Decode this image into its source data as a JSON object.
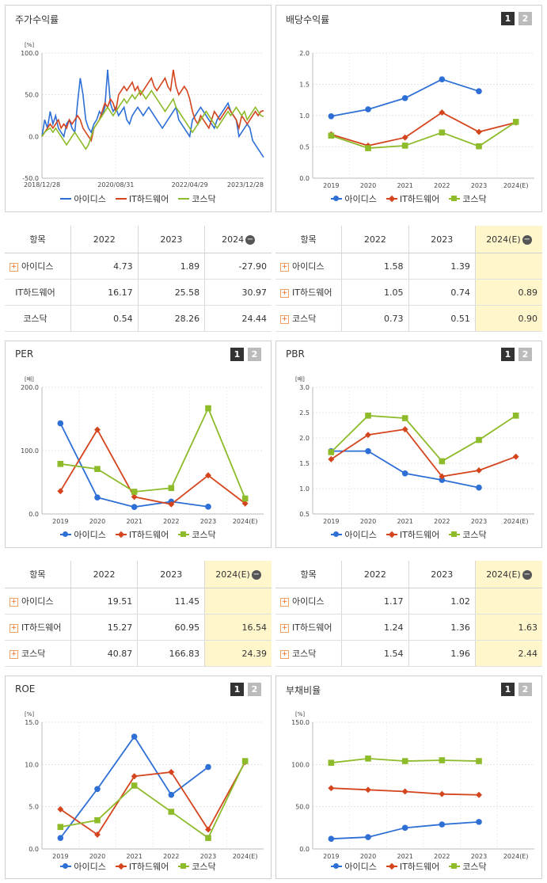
{
  "colors": {
    "adidas": "#2e6fd6",
    "it": "#d4451e",
    "kosdaq": "#8dbb2a",
    "highlight": "#fff6cc"
  },
  "series_names": [
    "아이디스",
    "IT하드웨어",
    "코스닥"
  ],
  "buttons": {
    "one": "1",
    "two": "2"
  },
  "panels": {
    "stock": {
      "title": "주가수익률"
    },
    "dividend": {
      "title": "배당수익률"
    },
    "per": {
      "title": "PER"
    },
    "pbr": {
      "title": "PBR"
    },
    "roe": {
      "title": "ROE"
    },
    "debt": {
      "title": "부채비율"
    }
  },
  "tables": {
    "stock": {
      "headers": [
        "항목",
        "2022",
        "2023",
        "2024"
      ],
      "rows": [
        {
          "name": "아이디스",
          "plus": true,
          "values": [
            "4.73",
            "1.89",
            "-27.90"
          ]
        },
        {
          "name": "IT하드웨어",
          "plus": false,
          "values": [
            "16.17",
            "25.58",
            "30.97"
          ]
        },
        {
          "name": "코스닥",
          "plus": false,
          "values": [
            "0.54",
            "28.26",
            "24.44"
          ]
        }
      ]
    },
    "dividend": {
      "headers": [
        "항목",
        "2022",
        "2023",
        "2024(E)"
      ],
      "rows": [
        {
          "name": "아이디스",
          "plus": true,
          "values": [
            "1.58",
            "1.39",
            ""
          ]
        },
        {
          "name": "IT하드웨어",
          "plus": true,
          "values": [
            "1.05",
            "0.74",
            "0.89"
          ]
        },
        {
          "name": "코스닥",
          "plus": true,
          "values": [
            "0.73",
            "0.51",
            "0.90"
          ]
        }
      ]
    },
    "per": {
      "headers": [
        "항목",
        "2022",
        "2023",
        "2024(E)"
      ],
      "rows": [
        {
          "name": "아이디스",
          "plus": true,
          "values": [
            "19.51",
            "11.45",
            ""
          ]
        },
        {
          "name": "IT하드웨어",
          "plus": true,
          "values": [
            "15.27",
            "60.95",
            "16.54"
          ]
        },
        {
          "name": "코스닥",
          "plus": true,
          "values": [
            "40.87",
            "166.83",
            "24.39"
          ]
        }
      ]
    },
    "pbr": {
      "headers": [
        "항목",
        "2022",
        "2023",
        "2024(E)"
      ],
      "rows": [
        {
          "name": "아이디스",
          "plus": true,
          "values": [
            "1.17",
            "1.02",
            ""
          ]
        },
        {
          "name": "IT하드웨어",
          "plus": true,
          "values": [
            "1.24",
            "1.36",
            "1.63"
          ]
        },
        {
          "name": "코스닥",
          "plus": true,
          "values": [
            "1.54",
            "1.96",
            "2.44"
          ]
        }
      ]
    }
  },
  "chart_data": [
    {
      "id": "stock",
      "type": "line",
      "unit": "[%]",
      "ylim": [
        -50,
        100
      ],
      "yticks": [
        "100.0",
        "50.0",
        "0.0",
        "-50.0"
      ],
      "xticks": [
        "2018/12/28",
        "2020/08/31",
        "2022/04/29",
        "2023/12/28"
      ],
      "series": [
        {
          "name": "아이디스",
          "values": [
            0,
            20,
            10,
            30,
            15,
            25,
            10,
            5,
            0,
            15,
            20,
            10,
            5,
            40,
            70,
            50,
            20,
            10,
            5,
            15,
            20,
            30,
            25,
            35,
            80,
            40,
            30,
            35,
            25,
            30,
            35,
            20,
            15,
            25,
            30,
            35,
            30,
            25,
            30,
            35,
            30,
            25,
            20,
            15,
            10,
            15,
            20,
            25,
            30,
            35,
            20,
            15,
            10,
            5,
            0,
            20,
            25,
            30,
            35,
            30,
            25,
            20,
            15,
            10,
            20,
            25,
            30,
            35,
            40,
            30,
            25,
            20,
            0,
            5,
            10,
            15,
            10,
            -5,
            -10,
            -15,
            -20,
            -25
          ]
        },
        {
          "name": "IT하드웨어",
          "values": [
            0,
            5,
            10,
            15,
            10,
            15,
            20,
            10,
            15,
            10,
            20,
            15,
            20,
            25,
            20,
            10,
            5,
            0,
            -5,
            10,
            15,
            20,
            30,
            40,
            35,
            45,
            40,
            30,
            50,
            55,
            60,
            55,
            60,
            65,
            55,
            60,
            50,
            55,
            60,
            65,
            70,
            60,
            55,
            60,
            65,
            70,
            60,
            55,
            80,
            60,
            50,
            55,
            60,
            55,
            45,
            30,
            20,
            15,
            25,
            20,
            15,
            10,
            20,
            30,
            25,
            20,
            25,
            30,
            35,
            30,
            25,
            20,
            10,
            25,
            20,
            15,
            20,
            25,
            30,
            25,
            30,
            31
          ]
        },
        {
          "name": "코스닥",
          "values": [
            0,
            5,
            8,
            10,
            5,
            10,
            5,
            0,
            -5,
            -10,
            -5,
            0,
            5,
            0,
            -5,
            -10,
            -15,
            -10,
            0,
            10,
            15,
            20,
            25,
            30,
            35,
            30,
            25,
            30,
            35,
            40,
            45,
            40,
            45,
            50,
            45,
            50,
            55,
            50,
            45,
            50,
            55,
            50,
            45,
            40,
            35,
            30,
            35,
            40,
            45,
            35,
            30,
            25,
            20,
            15,
            10,
            5,
            10,
            15,
            20,
            25,
            30,
            25,
            20,
            15,
            10,
            15,
            20,
            25,
            30,
            25,
            30,
            35,
            30,
            25,
            30,
            20,
            25,
            30,
            35,
            30,
            25,
            24
          ]
        }
      ]
    },
    {
      "id": "dividend",
      "type": "line",
      "unit": "",
      "categories": [
        "2019",
        "2020",
        "2021",
        "2022",
        "2023",
        "2024(E)"
      ],
      "ylim": [
        0,
        2
      ],
      "yticks": [
        "2.0",
        "1.5",
        "1.0",
        "0.5",
        "0.0"
      ],
      "series": [
        {
          "name": "아이디스",
          "values": [
            0.99,
            1.1,
            1.28,
            1.58,
            1.39,
            null
          ]
        },
        {
          "name": "IT하드웨어",
          "values": [
            0.7,
            0.52,
            0.65,
            1.05,
            0.74,
            0.89
          ]
        },
        {
          "name": "코스닥",
          "values": [
            0.68,
            0.48,
            0.52,
            0.73,
            0.51,
            0.9
          ]
        }
      ]
    },
    {
      "id": "per",
      "type": "line",
      "unit": "[배]",
      "categories": [
        "2019",
        "2020",
        "2021",
        "2022",
        "2023",
        "2024(E)"
      ],
      "ylim": [
        0,
        200
      ],
      "yticks": [
        "200.0",
        "100.0",
        "0.0"
      ],
      "series": [
        {
          "name": "아이디스",
          "values": [
            143,
            26,
            11,
            19.51,
            11.45,
            null
          ]
        },
        {
          "name": "IT하드웨어",
          "values": [
            36,
            133,
            27,
            15.27,
            60.95,
            16.54
          ]
        },
        {
          "name": "코스닥",
          "values": [
            79,
            71,
            35,
            40.87,
            166.83,
            24.39
          ]
        }
      ]
    },
    {
      "id": "pbr",
      "type": "line",
      "unit": "[배]",
      "categories": [
        "2019",
        "2020",
        "2021",
        "2022",
        "2023",
        "2024(E)"
      ],
      "ylim": [
        0.5,
        3.0
      ],
      "yticks": [
        "3.0",
        "2.5",
        "2.0",
        "1.5",
        "1.0",
        "0.5"
      ],
      "series": [
        {
          "name": "아이디스",
          "values": [
            1.74,
            1.74,
            1.3,
            1.17,
            1.02,
            null
          ]
        },
        {
          "name": "IT하드웨어",
          "values": [
            1.58,
            2.06,
            2.17,
            1.24,
            1.36,
            1.63
          ]
        },
        {
          "name": "코스닥",
          "values": [
            1.72,
            2.44,
            2.39,
            1.54,
            1.96,
            2.44
          ]
        }
      ]
    },
    {
      "id": "roe",
      "type": "line",
      "unit": "[%]",
      "categories": [
        "2019",
        "2020",
        "2021",
        "2022",
        "2023",
        "2024(E)"
      ],
      "ylim": [
        0,
        15
      ],
      "yticks": [
        "15.0",
        "10.0",
        "5.0",
        "0.0"
      ],
      "series": [
        {
          "name": "아이디스",
          "values": [
            1.3,
            7.1,
            13.3,
            6.4,
            9.7,
            null
          ]
        },
        {
          "name": "IT하드웨어",
          "values": [
            4.7,
            1.7,
            8.6,
            9.1,
            2.3,
            10.3
          ]
        },
        {
          "name": "코스닥",
          "values": [
            2.6,
            3.4,
            7.5,
            4.4,
            1.3,
            10.4
          ]
        }
      ]
    },
    {
      "id": "debt",
      "type": "line",
      "unit": "[%]",
      "categories": [
        "2019",
        "2020",
        "2021",
        "2022",
        "2023",
        "2024(E)"
      ],
      "ylim": [
        0,
        150
      ],
      "yticks": [
        "150.0",
        "100.0",
        "50.0",
        "0.0"
      ],
      "series": [
        {
          "name": "아이디스",
          "values": [
            12,
            14,
            25,
            29,
            32,
            null
          ]
        },
        {
          "name": "IT하드웨어",
          "values": [
            72,
            70,
            68,
            65,
            64,
            null
          ]
        },
        {
          "name": "코스닥",
          "values": [
            102,
            107,
            104,
            105,
            104,
            null
          ]
        }
      ]
    }
  ]
}
